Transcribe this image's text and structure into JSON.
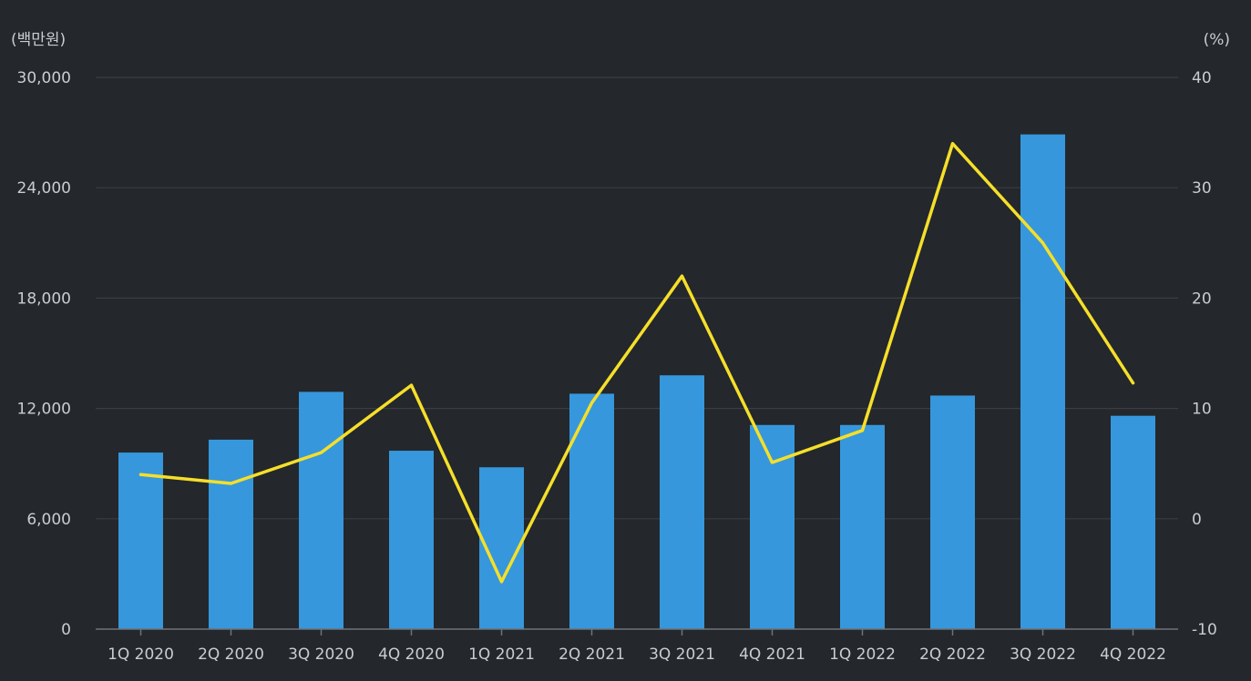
{
  "chart_data": {
    "type": "bar",
    "categories": [
      "1Q 2020",
      "2Q 2020",
      "3Q 2020",
      "4Q 2020",
      "1Q 2021",
      "2Q 2021",
      "3Q 2021",
      "4Q 2021",
      "1Q 2022",
      "2Q 2022",
      "3Q 2022",
      "4Q 2022"
    ],
    "series": [
      {
        "type": "bar",
        "axis": "left",
        "color": "#3697dc",
        "values": [
          9600,
          10300,
          12900,
          9700,
          8800,
          12800,
          13800,
          11100,
          11100,
          12700,
          26900,
          11600
        ]
      },
      {
        "type": "line",
        "axis": "right",
        "color": "#f5df2a",
        "values": [
          4.0,
          3.2,
          6.0,
          12.1,
          -5.7,
          10.5,
          22.0,
          5.1,
          8.0,
          34.0,
          25.0,
          12.3
        ]
      }
    ],
    "y_left": {
      "unit_label": "(백만원)",
      "ticks": [
        "0",
        "6,000",
        "12,000",
        "18,000",
        "24,000",
        "30,000"
      ],
      "range": [
        0,
        30000
      ]
    },
    "y_right": {
      "unit_label": "(%)",
      "ticks": [
        "-10",
        "0",
        "10",
        "20",
        "30",
        "40"
      ],
      "range": [
        -10,
        40
      ]
    },
    "grid": true,
    "legend": "none"
  }
}
